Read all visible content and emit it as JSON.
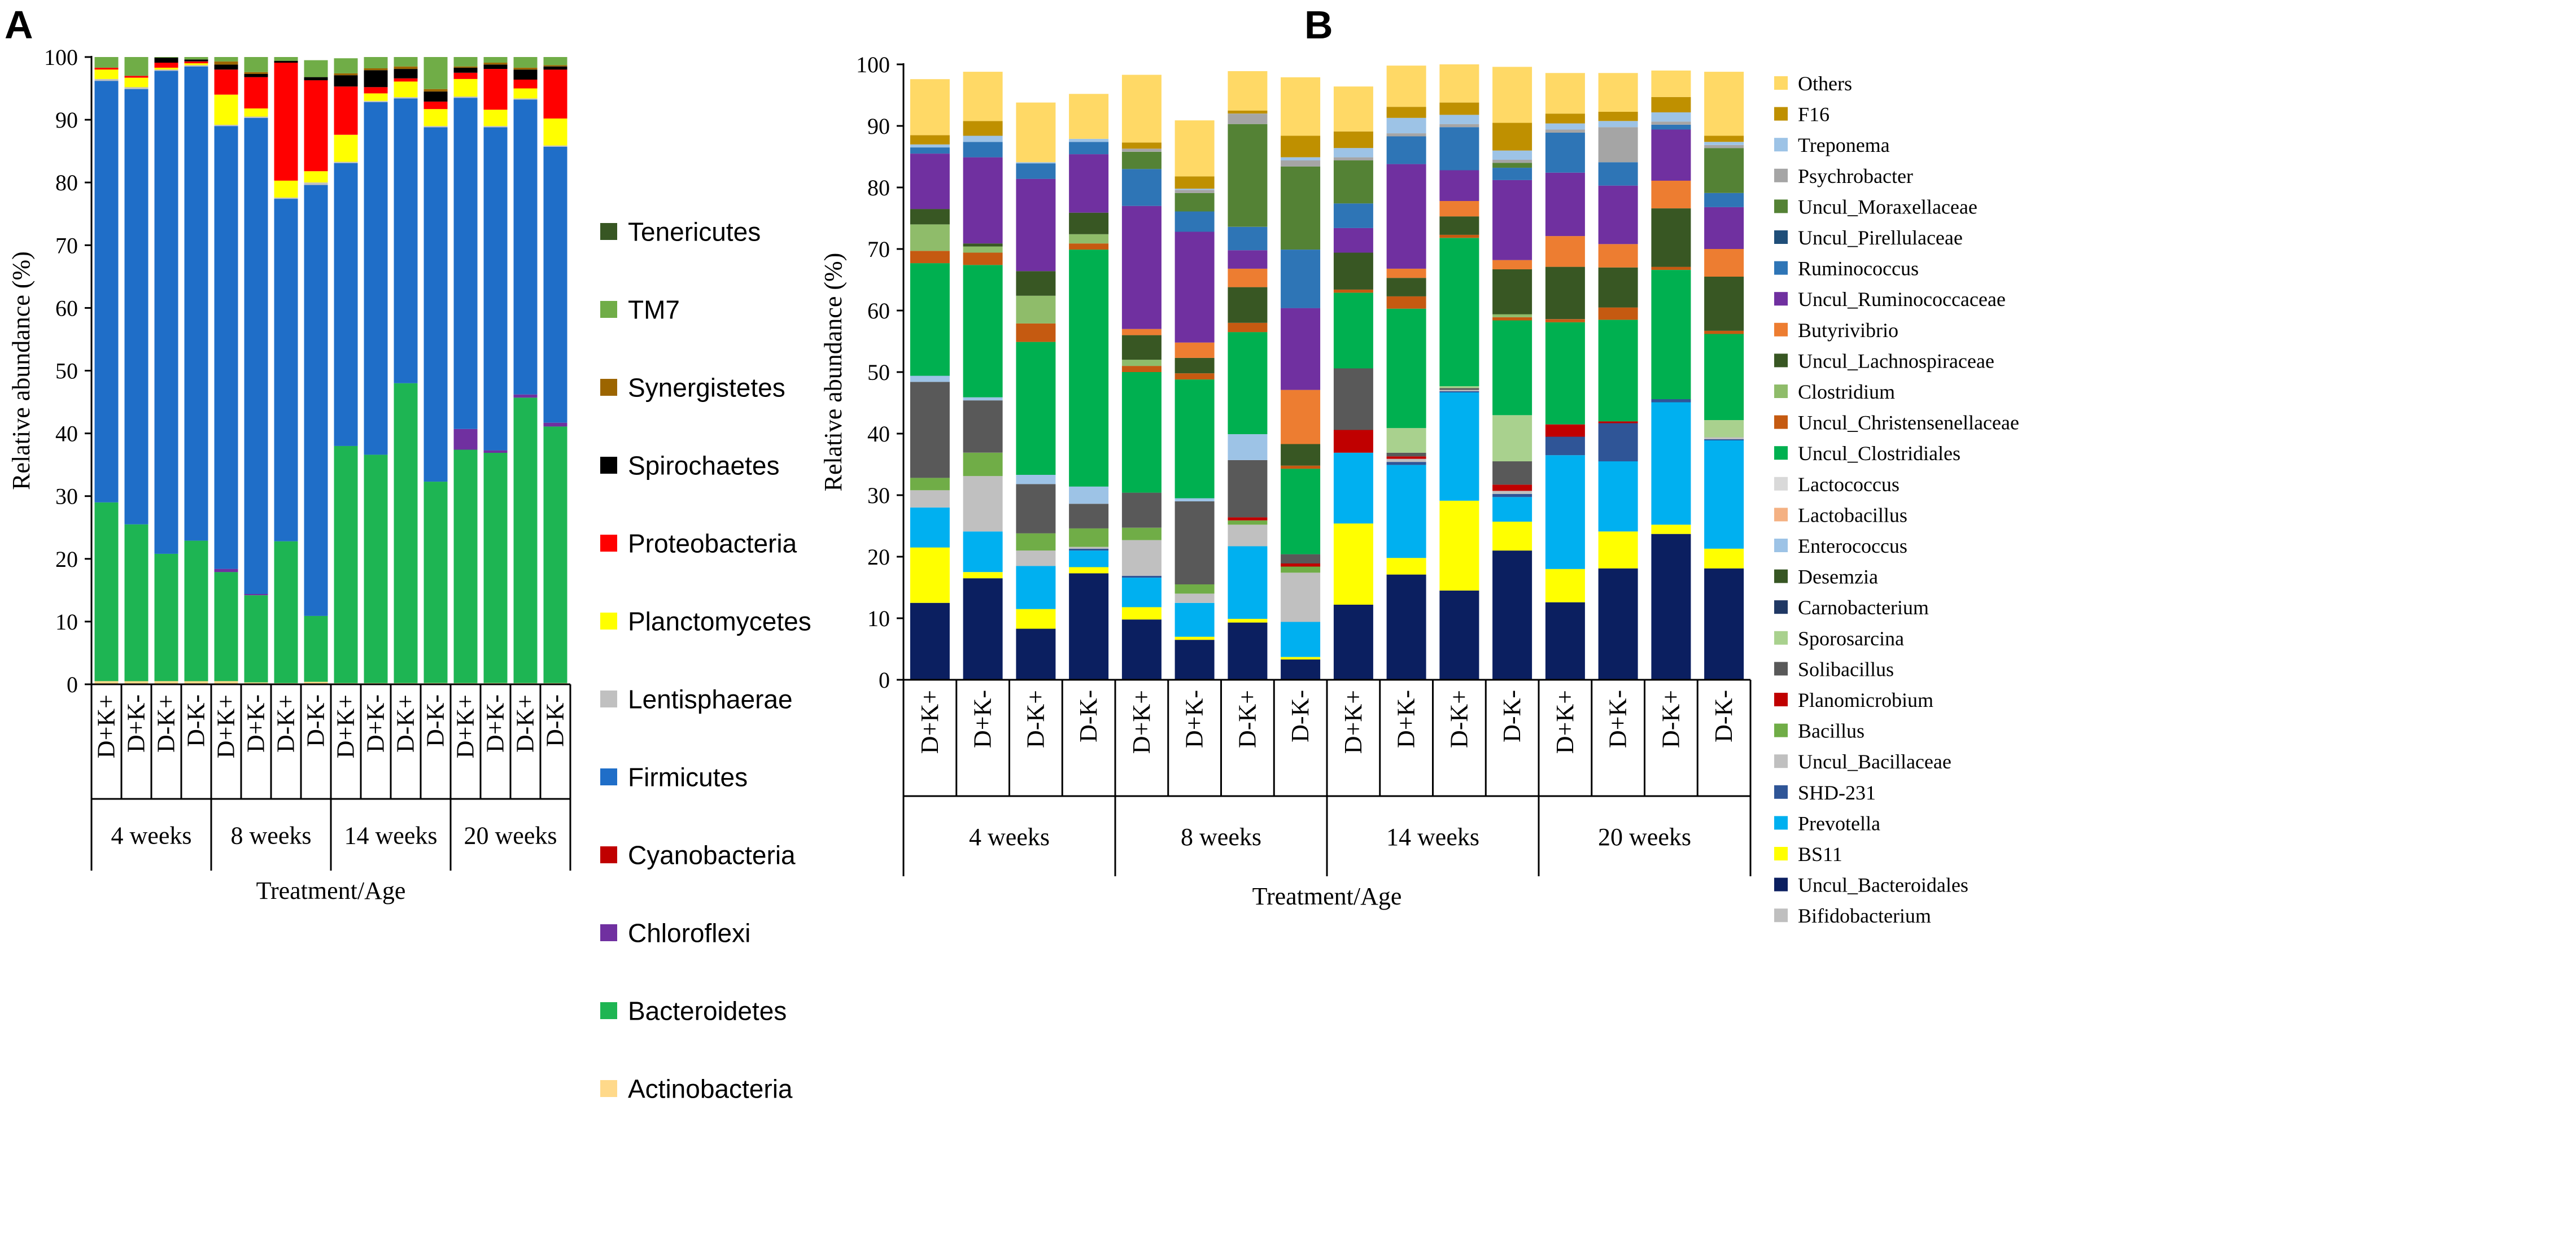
{
  "figure": {
    "panels": [
      "A",
      "B"
    ]
  },
  "chart_data": [
    {
      "panel": "A",
      "type": "bar",
      "stacked": true,
      "ylabel": "Relative abundance (%)",
      "xlabel": "Treatment/Age",
      "ylim": [
        0,
        100
      ],
      "yticks": [
        0,
        10,
        20,
        30,
        40,
        50,
        60,
        70,
        80,
        90,
        100
      ],
      "categories": [
        "D+K+",
        "D+K-",
        "D-K+",
        "D-K-",
        "D+K+",
        "D+K-",
        "D-K+",
        "D-K-",
        "D+K+",
        "D+K-",
        "D-K+",
        "D-K-",
        "D+K+",
        "D+K-",
        "D-K+",
        "D-K-"
      ],
      "groups": [
        {
          "label": "4 weeks",
          "count": 4
        },
        {
          "label": "8 weeks",
          "count": 4
        },
        {
          "label": "14 weeks",
          "count": 4
        },
        {
          "label": "20 weeks",
          "count": 4
        }
      ],
      "legend_order": [
        "Tenericutes",
        "TM7",
        "Synergistetes",
        "Spirochaetes",
        "Proteobacteria",
        "Planctomycetes",
        "Lentisphaerae",
        "Firmicutes",
        "Cyanobacteria",
        "Chloroflexi",
        "Bacteroidetes",
        "Actinobacteria"
      ],
      "series": [
        {
          "name": "Actinobacteria",
          "color": "#FFD98A",
          "values": [
            0.5,
            0.5,
            0.5,
            0.5,
            0.5,
            0.3,
            0.2,
            0.4,
            0.2,
            0.2,
            0.2,
            0.2,
            0.2,
            0.2,
            0.2,
            0.2
          ]
        },
        {
          "name": "Bacteroidetes",
          "color": "#1EB553",
          "values": [
            28.5,
            25.0,
            20.3,
            22.4,
            17.4,
            13.9,
            22.6,
            10.5,
            37.8,
            36.4,
            47.8,
            32.1,
            37.2,
            36.7,
            45.5,
            40.9
          ]
        },
        {
          "name": "Chloroflexi",
          "color": "#7030A0",
          "values": [
            0,
            0,
            0,
            0,
            0.5,
            0.2,
            0,
            0,
            0,
            0,
            0,
            0,
            3.3,
            0.4,
            0.5,
            0.6
          ]
        },
        {
          "name": "Cyanobacteria",
          "color": "#C00000",
          "values": [
            0,
            0,
            0,
            0,
            0,
            0,
            0,
            0,
            0,
            0,
            0,
            0,
            0,
            0,
            0,
            0
          ]
        },
        {
          "name": "Firmicutes",
          "color": "#1F6EC8",
          "values": [
            67.2,
            69.4,
            77.0,
            75.6,
            70.6,
            75.9,
            54.6,
            68.7,
            45.1,
            56.2,
            45.4,
            56.5,
            52.8,
            51.5,
            47.0,
            44.0
          ]
        },
        {
          "name": "Lentisphaerae",
          "color": "#C0C0C0",
          "values": [
            0.3,
            0.3,
            0.2,
            0.2,
            0.2,
            0.2,
            0.2,
            0.4,
            0.2,
            0.2,
            0.2,
            0.2,
            0.2,
            0.2,
            0.2,
            0.2
          ]
        },
        {
          "name": "Planctomycetes",
          "color": "#FFFF00",
          "values": [
            1.5,
            1.5,
            0.3,
            0.3,
            4.8,
            1.3,
            2.7,
            1.8,
            4.3,
            1.2,
            2.5,
            2.7,
            2.8,
            2.6,
            1.6,
            4.3
          ]
        },
        {
          "name": "Proteobacteria",
          "color": "#FF0000",
          "values": [
            0.3,
            0.3,
            0.8,
            0.3,
            4.0,
            5.0,
            18.8,
            14.5,
            7.7,
            1.0,
            0.5,
            1.2,
            1.0,
            6.5,
            1.4,
            7.8
          ]
        },
        {
          "name": "Spirochaetes",
          "color": "#000000",
          "values": [
            0,
            0,
            0.8,
            0.3,
            0.8,
            0.5,
            0.3,
            0.5,
            1.8,
            2.7,
            1.5,
            1.6,
            0.8,
            0.7,
            1.6,
            0.5
          ]
        },
        {
          "name": "Synergistetes",
          "color": "#9C6500",
          "values": [
            0,
            0,
            0,
            0,
            0.5,
            0.3,
            0,
            0,
            0.3,
            0.3,
            0.4,
            0.4,
            0.2,
            0.3,
            0.3,
            0.2
          ]
        },
        {
          "name": "TM7",
          "color": "#70AD47",
          "values": [
            1.7,
            3.0,
            0.1,
            0.4,
            0.7,
            2.9,
            0.8,
            2.7,
            2.4,
            1.8,
            1.5,
            5.1,
            1.5,
            0.9,
            1.7,
            1.3
          ]
        },
        {
          "name": "Tenericutes",
          "color": "#375623",
          "values": [
            0,
            0,
            0,
            0,
            0,
            0,
            0,
            0,
            0,
            0,
            0,
            0,
            0,
            0,
            0,
            0
          ]
        }
      ]
    },
    {
      "panel": "B",
      "type": "bar",
      "stacked": true,
      "ylabel": "Relative abundance (%)",
      "xlabel": "Treatment/Age",
      "ylim": [
        0,
        100
      ],
      "yticks": [
        0,
        10,
        20,
        30,
        40,
        50,
        60,
        70,
        80,
        90,
        100
      ],
      "categories": [
        "D+K+",
        "D+K-",
        "D-K+",
        "D-K-",
        "D+K+",
        "D+K-",
        "D-K+",
        "D-K-",
        "D+K+",
        "D+K-",
        "D-K+",
        "D-K-",
        "D+K+",
        "D+K-",
        "D-K+",
        "D-K-"
      ],
      "groups": [
        {
          "label": "4 weeks",
          "count": 4
        },
        {
          "label": "8 weeks",
          "count": 4
        },
        {
          "label": "14 weeks",
          "count": 4
        },
        {
          "label": "20 weeks",
          "count": 4
        }
      ],
      "legend_order": [
        "Others",
        "F16",
        "Treponema",
        "Psychrobacter",
        "Uncul_Moraxellaceae",
        "Uncul_Pirellulaceae",
        "Ruminococcus",
        "Uncul_Ruminococcaceae",
        "Butyrivibrio",
        "Uncul_Lachnospiraceae",
        "Clostridium",
        "Uncul_Christensenellaceae",
        "Uncul_Clostridiales",
        "Lactococcus",
        "Lactobacillus",
        "Enterococcus",
        "Desemzia",
        "Carnobacterium",
        "Sporosarcina",
        "Solibacillus",
        "Planomicrobium",
        "Bacillus",
        "Uncul_Bacillaceae",
        "SHD-231",
        "Prevotella",
        "BS11",
        "Uncul_Bacteroidales",
        "Bifidobacterium"
      ],
      "series": [
        {
          "name": "Bifidobacterium",
          "color": "#BFBFBF",
          "label_color": "#000000",
          "values": [
            0,
            0,
            0,
            0,
            0,
            0,
            0,
            0,
            0,
            0,
            0,
            0,
            0,
            0,
            0,
            0
          ]
        },
        {
          "name": "Uncul_Bacteroidales",
          "color": "#0B1F60",
          "label_color": "#1F3A6E",
          "values": [
            12.5,
            16.5,
            8.3,
            17.3,
            9.8,
            6.5,
            9.3,
            3.3,
            12.2,
            17.1,
            14.5,
            21.0,
            12.6,
            18.1,
            23.7,
            18.1
          ]
        },
        {
          "name": "BS11",
          "color": "#FFFF00",
          "label_color": "#1F3A6E",
          "values": [
            9.0,
            1.0,
            3.2,
            1.0,
            2.0,
            0.5,
            0.6,
            0.4,
            13.2,
            2.7,
            14.6,
            4.7,
            5.4,
            6.0,
            1.5,
            3.2
          ]
        },
        {
          "name": "Prevotella",
          "color": "#00B0F0",
          "label_color": "#1F3A6E",
          "values": [
            6.5,
            6.6,
            7.0,
            2.7,
            4.8,
            5.5,
            11.8,
            5.7,
            11.5,
            15.1,
            17.6,
            4.0,
            18.5,
            11.4,
            19.9,
            17.6
          ]
        },
        {
          "name": "SHD-231",
          "color": "#2F5597",
          "label_color": "#000000",
          "values": [
            0,
            0,
            0,
            0.3,
            0.3,
            0,
            0,
            0,
            0,
            0.5,
            0.2,
            0.5,
            3.0,
            6.2,
            0.5,
            0.2
          ]
        },
        {
          "name": "Uncul_Bacillaceae",
          "color": "#C0C0C0",
          "label_color": "#E02020",
          "values": [
            2.8,
            9.0,
            2.5,
            0.3,
            5.8,
            1.5,
            3.5,
            8.0,
            0,
            0.5,
            0.2,
            0.5,
            0,
            0,
            0,
            0.3
          ]
        },
        {
          "name": "Bacillus",
          "color": "#70AD47",
          "label_color": "#2E9E2E",
          "values": [
            2.0,
            3.8,
            2.8,
            3.0,
            2.0,
            1.5,
            0.7,
            1.0,
            0,
            0,
            0,
            0,
            0,
            0,
            0,
            0
          ]
        },
        {
          "name": "Planomicrobium",
          "color": "#C00000",
          "label_color": "#000000",
          "values": [
            0,
            0,
            0,
            0,
            0,
            0,
            0.5,
            0.5,
            3.7,
            0.4,
            0,
            1.0,
            2.0,
            0.3,
            0,
            0
          ]
        },
        {
          "name": "Solibacillus",
          "color": "#595959",
          "label_color": "#E02020",
          "values": [
            15.6,
            8.5,
            8.0,
            4.0,
            5.7,
            13.5,
            9.3,
            1.5,
            10.0,
            0.6,
            0.3,
            3.8,
            0,
            0,
            0,
            0
          ]
        },
        {
          "name": "Sporosarcina",
          "color": "#A9D18E",
          "label_color": "#000000",
          "values": [
            0,
            0,
            0,
            0,
            0,
            0,
            0,
            0,
            0,
            4.0,
            0.3,
            7.5,
            0,
            0,
            0,
            2.8
          ]
        },
        {
          "name": "Carnobacterium",
          "color": "#203864",
          "label_color": "#000000",
          "values": [
            0,
            0,
            0,
            0,
            0,
            0,
            0,
            0,
            0,
            0,
            0,
            0,
            0,
            0,
            0,
            0
          ]
        },
        {
          "name": "Desemzia",
          "color": "#375623",
          "label_color": "#000000",
          "values": [
            0,
            0,
            0,
            0,
            0,
            0,
            0,
            0,
            0,
            0,
            0,
            0,
            0,
            0,
            0,
            0
          ]
        },
        {
          "name": "Enterococcus",
          "color": "#9DC3E6",
          "label_color": "#000000",
          "values": [
            1.0,
            0.5,
            1.5,
            2.8,
            0,
            0.5,
            4.2,
            0,
            0,
            0,
            0,
            0,
            0,
            0,
            0,
            0
          ]
        },
        {
          "name": "Lactobacillus",
          "color": "#F4B183",
          "label_color": "#000000",
          "values": [
            0,
            0,
            0,
            0,
            0,
            0,
            0,
            0,
            0,
            0,
            0,
            0,
            0,
            0,
            0,
            0
          ]
        },
        {
          "name": "Lactococcus",
          "color": "#D9D9D9",
          "label_color": "#000000",
          "values": [
            0,
            0,
            0,
            0,
            0,
            0,
            0,
            0,
            0,
            0,
            0,
            0,
            0,
            0,
            0,
            0
          ]
        },
        {
          "name": "Uncul_Clostridiales",
          "color": "#00B050",
          "label_color": "#000000",
          "values": [
            18.3,
            21.5,
            21.6,
            38.5,
            19.6,
            19.3,
            16.6,
            13.9,
            12.3,
            19.4,
            24.1,
            15.4,
            16.6,
            16.5,
            21.0,
            14.0
          ]
        },
        {
          "name": "Uncul_Christensenellaceae",
          "color": "#C55A11",
          "label_color": "#000000",
          "values": [
            2.0,
            2.0,
            3.0,
            1.0,
            1.0,
            1.0,
            1.5,
            0.5,
            0.5,
            2.0,
            0.5,
            0.5,
            0.5,
            2.0,
            0.5,
            0.5
          ]
        },
        {
          "name": "Clostridium",
          "color": "#8FBC6A",
          "label_color": "#000000",
          "values": [
            4.3,
            1.0,
            4.5,
            1.5,
            1.0,
            0,
            0,
            0,
            0,
            0,
            0,
            0.5,
            0,
            0,
            0,
            0
          ]
        },
        {
          "name": "Uncul_Lachnospiraceae",
          "color": "#385723",
          "label_color": "#1F3A6E",
          "values": [
            2.5,
            0.5,
            4.0,
            3.5,
            4.0,
            2.5,
            5.8,
            3.5,
            6.0,
            3.0,
            3.0,
            7.3,
            8.5,
            6.5,
            9.5,
            8.8
          ]
        },
        {
          "name": "Butyrivibrio",
          "color": "#ED7D31",
          "label_color": "#000000",
          "values": [
            0,
            0,
            0,
            0,
            1.0,
            2.5,
            3.0,
            8.8,
            0,
            1.5,
            2.5,
            1.5,
            5.0,
            3.8,
            4.5,
            4.5
          ]
        },
        {
          "name": "Uncul_Ruminococcaceae",
          "color": "#7030A0",
          "label_color": "#E02020",
          "values": [
            9.0,
            14.0,
            15.0,
            9.5,
            20.0,
            18.0,
            3.0,
            13.3,
            4.0,
            17.0,
            5.0,
            13.0,
            10.3,
            9.5,
            8.3,
            6.8
          ]
        },
        {
          "name": "Ruminococcus",
          "color": "#2E75B6",
          "label_color": "#000000",
          "values": [
            1.0,
            2.5,
            2.5,
            2.0,
            6.0,
            3.3,
            3.8,
            9.5,
            4.0,
            4.5,
            7.0,
            2.0,
            6.5,
            3.8,
            0.8,
            2.3
          ]
        },
        {
          "name": "Uncul_Pirellulaceae",
          "color": "#1F4E79",
          "label_color": "#000000",
          "values": [
            0,
            0,
            0,
            0,
            0,
            0,
            0,
            0,
            0,
            0,
            0,
            0,
            0,
            0,
            0,
            0
          ]
        },
        {
          "name": "Uncul_Moraxellaceae",
          "color": "#548235",
          "label_color": "#E02020",
          "values": [
            0,
            0,
            0,
            0,
            2.8,
            3.0,
            16.7,
            13.5,
            7.0,
            0,
            0,
            0.8,
            0,
            0,
            0,
            7.3
          ]
        },
        {
          "name": "Psychrobacter",
          "color": "#A5A5A5",
          "label_color": "#000000",
          "values": [
            0,
            0,
            0,
            0,
            0.5,
            0.5,
            1.7,
            1.0,
            0.5,
            0.5,
            0.5,
            0.5,
            0.5,
            5.7,
            0.5,
            0.5
          ]
        },
        {
          "name": "Treponema",
          "color": "#9DC3E6",
          "label_color": "#000000",
          "values": [
            0.5,
            1.0,
            0.2,
            0.5,
            0,
            0.2,
            0,
            0.5,
            1.5,
            2.5,
            1.5,
            1.5,
            1.0,
            1.0,
            1.5,
            0.5
          ]
        },
        {
          "name": "F16",
          "color": "#BF9000",
          "label_color": "#000000",
          "values": [
            1.5,
            2.4,
            0,
            0,
            1.0,
            2.0,
            0.5,
            3.5,
            2.7,
            1.8,
            2.0,
            4.5,
            1.6,
            1.5,
            2.5,
            1.0
          ]
        },
        {
          "name": "Others",
          "color": "#FFD966",
          "label_color": "#000000",
          "values": [
            9.1,
            8.0,
            9.7,
            7.3,
            11.0,
            9.1,
            6.4,
            9.5,
            7.3,
            6.7,
            6.3,
            9.1,
            6.6,
            6.3,
            4.3,
            10.4
          ]
        }
      ]
    }
  ]
}
